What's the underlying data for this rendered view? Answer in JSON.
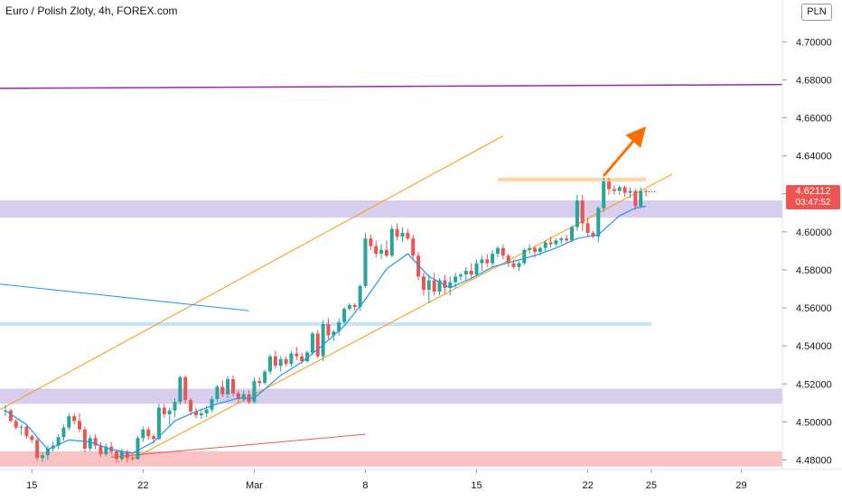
{
  "header": {
    "title": "Euro / Polish Zloty, 4h, FOREX.com",
    "currency": "PLN"
  },
  "price_tag": {
    "price": "4.62112",
    "countdown": "03:47:52",
    "color": "#ef5350"
  },
  "colors": {
    "up": "#26a69a",
    "down": "#ef5350",
    "ma": "#2196f3",
    "channel": "#ff9800",
    "purple_line": "#9c27b0",
    "zone_purple": "#d1c4e9",
    "zone_blue": "#bbdefb",
    "zone_red": "#f8b9b9",
    "zone_orange": "#ffcc99",
    "arrow": "#ff6d00"
  },
  "chart_data": {
    "type": "candlestick",
    "title": "Euro / Polish Zloty, 4h, FOREX.com",
    "y_axis": {
      "range": [
        4.475,
        4.722
      ],
      "ticks": [
        4.48,
        4.5,
        4.52,
        4.54,
        4.56,
        4.58,
        4.6,
        4.62,
        4.64,
        4.66,
        4.68,
        4.7
      ],
      "tick_labels": [
        "4.48000",
        "4.50000",
        "4.52000",
        "4.54000",
        "4.56000",
        "4.58000",
        "4.60000",
        "4.62000",
        "4.64000",
        "4.66000",
        "4.68000",
        "4.70000"
      ],
      "position": "right"
    },
    "x_axis": {
      "bar_range": [
        0,
        140
      ],
      "ticks": [
        {
          "label": "15",
          "bar": 5
        },
        {
          "label": "22",
          "bar": 26
        },
        {
          "label": "Mar",
          "bar": 47
        },
        {
          "label": "8",
          "bar": 68
        },
        {
          "label": "15",
          "bar": 89
        },
        {
          "label": "22",
          "bar": 110
        },
        {
          "label": "25",
          "bar": 122
        },
        {
          "label": "29",
          "bar": 139
        }
      ]
    },
    "last_price": 4.62112,
    "candles": [
      [
        4.5055,
        4.509,
        4.503,
        4.506
      ],
      [
        4.506,
        4.507,
        4.4995,
        4.5005
      ],
      [
        4.5005,
        4.5015,
        4.496,
        4.497
      ],
      [
        4.497,
        4.4985,
        4.493,
        4.4975
      ],
      [
        4.4975,
        4.4985,
        4.491,
        4.4925
      ],
      [
        4.4925,
        4.4935,
        4.489,
        4.4905
      ],
      [
        4.4905,
        4.4915,
        4.4795,
        4.481
      ],
      [
        4.481,
        4.484,
        4.479,
        4.4825
      ],
      [
        4.4825,
        4.4875,
        4.48,
        4.486
      ],
      [
        4.486,
        4.4895,
        4.4845,
        4.4875
      ],
      [
        4.4875,
        4.4935,
        4.4855,
        4.492
      ],
      [
        4.492,
        4.4985,
        4.49,
        4.497
      ],
      [
        4.497,
        4.5045,
        4.4955,
        4.503
      ],
      [
        4.503,
        4.5045,
        4.4985,
        4.5005
      ],
      [
        4.5005,
        4.5045,
        4.4945,
        4.496
      ],
      [
        4.496,
        4.4975,
        4.484,
        4.486
      ],
      [
        4.486,
        4.493,
        4.4845,
        4.4915
      ],
      [
        4.4915,
        4.4935,
        4.4855,
        4.4875
      ],
      [
        4.4875,
        4.4895,
        4.4815,
        4.483
      ],
      [
        4.483,
        4.4885,
        4.482,
        4.487
      ],
      [
        4.487,
        4.4895,
        4.483,
        4.4845
      ],
      [
        4.4845,
        4.4855,
        4.4785,
        4.4805
      ],
      [
        4.4805,
        4.486,
        4.4795,
        4.4845
      ],
      [
        4.4845,
        4.4855,
        4.4785,
        4.481
      ],
      [
        4.481,
        4.482,
        4.4795,
        4.4805
      ],
      [
        4.4805,
        4.4925,
        4.48,
        4.4915
      ],
      [
        4.4915,
        4.4975,
        4.4895,
        4.496
      ],
      [
        4.496,
        4.4975,
        4.4905,
        4.4925
      ],
      [
        4.4925,
        4.4935,
        4.4885,
        4.491
      ],
      [
        4.491,
        4.5095,
        4.4905,
        4.5075
      ],
      [
        4.5075,
        4.5095,
        4.502,
        4.504
      ],
      [
        4.504,
        4.5075,
        4.4985,
        4.506
      ],
      [
        4.506,
        4.5125,
        4.5025,
        4.5105
      ],
      [
        4.5105,
        4.5245,
        4.509,
        4.5235
      ],
      [
        4.5235,
        4.5245,
        4.5095,
        4.5115
      ],
      [
        4.5115,
        4.5125,
        4.5035,
        4.5055
      ],
      [
        4.5055,
        4.5075,
        4.502,
        4.5035
      ],
      [
        4.5035,
        4.5065,
        4.5015,
        4.5045
      ],
      [
        4.5045,
        4.5085,
        4.5025,
        4.5065
      ],
      [
        4.5065,
        4.5135,
        4.505,
        4.512
      ],
      [
        4.512,
        4.5195,
        4.5105,
        4.5185
      ],
      [
        4.5185,
        4.522,
        4.513,
        4.5145
      ],
      [
        4.5145,
        4.524,
        4.5125,
        4.5225
      ],
      [
        4.5225,
        4.5245,
        4.5135,
        4.515
      ],
      [
        4.515,
        4.5165,
        4.51,
        4.512
      ],
      [
        4.512,
        4.5165,
        4.5105,
        4.5145
      ],
      [
        4.5145,
        4.5165,
        4.5095,
        4.5105
      ],
      [
        4.5105,
        4.5235,
        4.5095,
        4.5215
      ],
      [
        4.5215,
        4.5235,
        4.5185,
        4.5205
      ],
      [
        4.5205,
        4.5275,
        4.5195,
        4.5265
      ],
      [
        4.5265,
        4.5355,
        4.525,
        4.5345
      ],
      [
        4.5345,
        4.5375,
        4.528,
        4.5295
      ],
      [
        4.5295,
        4.5345,
        4.5265,
        4.533
      ],
      [
        4.533,
        4.5345,
        4.529,
        4.5305
      ],
      [
        4.5305,
        4.5375,
        4.529,
        4.536
      ],
      [
        4.536,
        4.5395,
        4.5325,
        4.5345
      ],
      [
        4.5345,
        4.5365,
        4.5305,
        4.532
      ],
      [
        4.532,
        4.5375,
        4.531,
        4.5365
      ],
      [
        4.5365,
        4.5475,
        4.535,
        4.5465
      ],
      [
        4.5465,
        4.5485,
        4.5335,
        4.5345
      ],
      [
        4.5345,
        4.5535,
        4.532,
        4.5515
      ],
      [
        4.5515,
        4.5545,
        4.5435,
        4.5455
      ],
      [
        4.5455,
        4.5485,
        4.5425,
        4.5475
      ],
      [
        4.5475,
        4.5545,
        4.5455,
        4.5525
      ],
      [
        4.5525,
        4.5605,
        4.5515,
        4.5595
      ],
      [
        4.5595,
        4.5625,
        4.5585,
        4.5615
      ],
      [
        4.5615,
        4.5625,
        4.5585,
        4.5605
      ],
      [
        4.5605,
        4.5725,
        4.5585,
        4.5715
      ],
      [
        4.5715,
        4.5995,
        4.5705,
        4.5965
      ],
      [
        4.5965,
        4.5985,
        4.5905,
        4.5925
      ],
      [
        4.5925,
        4.5955,
        4.5865,
        4.5885
      ],
      [
        4.5885,
        4.5935,
        4.5855,
        4.5905
      ],
      [
        4.5905,
        4.5955,
        4.5865,
        4.5875
      ],
      [
        4.5875,
        4.6035,
        4.5865,
        4.6015
      ],
      [
        4.6015,
        4.6045,
        4.5955,
        4.5975
      ],
      [
        4.5975,
        4.6025,
        4.5945,
        4.5995
      ],
      [
        4.5995,
        4.6015,
        4.5955,
        4.5965
      ],
      [
        4.5965,
        4.5985,
        4.5855,
        4.5875
      ],
      [
        4.5875,
        4.5895,
        4.5745,
        4.5765
      ],
      [
        4.5765,
        4.5785,
        4.5665,
        4.5695
      ],
      [
        4.5695,
        4.5775,
        4.5625,
        4.5745
      ],
      [
        4.5745,
        4.5785,
        4.5665,
        4.5685
      ],
      [
        4.5685,
        4.5755,
        4.5665,
        4.5745
      ],
      [
        4.5745,
        4.5775,
        4.5675,
        4.5705
      ],
      [
        4.5705,
        4.5765,
        4.5665,
        4.5735
      ],
      [
        4.5735,
        4.5785,
        4.5705,
        4.5765
      ],
      [
        4.5765,
        4.5785,
        4.5745,
        4.5775
      ],
      [
        4.5775,
        4.5815,
        4.5745,
        4.5795
      ],
      [
        4.5795,
        4.5835,
        4.5755,
        4.5775
      ],
      [
        4.5775,
        4.5855,
        4.5765,
        4.5835
      ],
      [
        4.5835,
        4.5875,
        4.5795,
        4.5855
      ],
      [
        4.5855,
        4.5885,
        4.5815,
        4.5835
      ],
      [
        4.5835,
        4.5905,
        4.5815,
        4.5885
      ],
      [
        4.5885,
        4.5925,
        4.5865,
        4.5915
      ],
      [
        4.5915,
        4.5935,
        4.5855,
        4.5875
      ],
      [
        4.5875,
        4.5885,
        4.5815,
        4.5835
      ],
      [
        4.5835,
        4.5855,
        4.5805,
        4.5815
      ],
      [
        4.5815,
        4.5845,
        4.5795,
        4.5835
      ],
      [
        4.5835,
        4.5915,
        4.5825,
        4.5905
      ],
      [
        4.5905,
        4.5935,
        4.5885,
        4.5915
      ],
      [
        4.5915,
        4.5925,
        4.5865,
        4.5895
      ],
      [
        4.5895,
        4.5925,
        4.5875,
        4.5915
      ],
      [
        4.5915,
        4.5955,
        4.5895,
        4.5945
      ],
      [
        4.5945,
        4.5975,
        4.5915,
        4.5935
      ],
      [
        4.5935,
        4.5965,
        4.5925,
        4.5955
      ],
      [
        4.5955,
        4.5975,
        4.5935,
        4.5965
      ],
      [
        4.5965,
        4.5985,
        4.5945,
        4.5955
      ],
      [
        4.5955,
        4.6035,
        4.5945,
        4.6025
      ],
      [
        4.6025,
        4.6195,
        4.6005,
        4.6165
      ],
      [
        4.6165,
        4.6195,
        4.6005,
        4.6045
      ],
      [
        4.6045,
        4.6075,
        4.5975,
        4.5995
      ],
      [
        4.5995,
        4.6005,
        4.5965,
        4.5975
      ],
      [
        4.5975,
        4.6135,
        4.5945,
        4.6125
      ],
      [
        4.6125,
        4.6285,
        4.6105,
        4.6265
      ],
      [
        4.6265,
        4.6285,
        4.6195,
        4.6225
      ],
      [
        4.6225,
        4.6245,
        4.6195,
        4.6215
      ],
      [
        4.6215,
        4.6245,
        4.6195,
        4.6235
      ],
      [
        4.6235,
        4.6245,
        4.6185,
        4.6205
      ],
      [
        4.6205,
        4.6235,
        4.6175,
        4.6215
      ],
      [
        4.6215,
        4.6225,
        4.6115,
        4.6135
      ],
      [
        4.6135,
        4.6235,
        4.6125,
        4.6215
      ],
      [
        4.6215,
        4.6225,
        4.6185,
        4.62112
      ]
    ],
    "moving_average": [
      [
        0,
        4.506
      ],
      [
        4,
        4.4985
      ],
      [
        8,
        4.4855
      ],
      [
        12,
        4.4905
      ],
      [
        16,
        4.4895
      ],
      [
        20,
        4.4855
      ],
      [
        24,
        4.4835
      ],
      [
        28,
        4.4895
      ],
      [
        32,
        4.5005
      ],
      [
        36,
        4.5055
      ],
      [
        40,
        4.5095
      ],
      [
        44,
        4.5125
      ],
      [
        47,
        4.5125
      ],
      [
        52,
        4.5245
      ],
      [
        56,
        4.5315
      ],
      [
        60,
        4.5405
      ],
      [
        64,
        4.5505
      ],
      [
        68,
        4.5645
      ],
      [
        72,
        4.5805
      ],
      [
        76,
        4.5885
      ],
      [
        80,
        4.5765
      ],
      [
        84,
        4.5705
      ],
      [
        88,
        4.5755
      ],
      [
        92,
        4.5815
      ],
      [
        96,
        4.5845
      ],
      [
        100,
        4.5875
      ],
      [
        104,
        4.5915
      ],
      [
        108,
        4.5965
      ],
      [
        112,
        4.5985
      ],
      [
        116,
        4.6085
      ],
      [
        119,
        4.6125
      ],
      [
        121,
        4.6135
      ]
    ],
    "annotations": {
      "zones": [
        {
          "color": "zone_purple",
          "y": [
            4.6075,
            4.6165
          ],
          "bars": [
            -2,
            150
          ]
        },
        {
          "color": "zone_purple",
          "y": [
            4.5095,
            4.5175
          ],
          "bars": [
            -2,
            150
          ]
        },
        {
          "color": "zone_blue",
          "y": [
            4.5505,
            4.5525
          ],
          "bars": [
            -2,
            122
          ]
        },
        {
          "color": "zone_red",
          "y": [
            4.4765,
            4.4845
          ],
          "bars": [
            -2,
            150
          ]
        },
        {
          "color": "zone_orange",
          "y": [
            4.6265,
            4.6285
          ],
          "bars": [
            93,
            121
          ]
        }
      ],
      "lines": [
        {
          "color": "channel",
          "from": [
            -1,
            4.5065
          ],
          "to": [
            94,
            4.6505
          ]
        },
        {
          "color": "channel",
          "from": [
            24,
            4.4805
          ],
          "to": [
            126,
            4.6305
          ]
        },
        {
          "color": "purple_line",
          "from": [
            -1,
            4.6755
          ],
          "to": [
            150,
            4.6775
          ]
        },
        {
          "color": "down",
          "from": [
            20,
            4.4815
          ],
          "to": [
            68,
            4.4935
          ]
        },
        {
          "color": "ma",
          "from": [
            -1,
            4.5725
          ],
          "to": [
            46,
            4.5585
          ]
        }
      ],
      "arrow": {
        "color": "arrow",
        "from": [
          113,
          4.6295
        ],
        "to": [
          121,
          4.6555
        ]
      }
    }
  }
}
